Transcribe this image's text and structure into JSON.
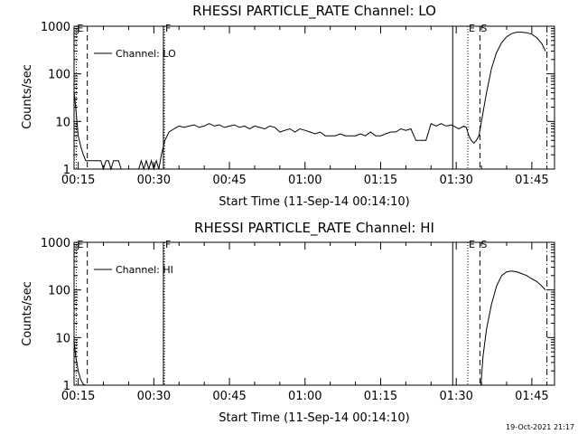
{
  "chart_data": [
    {
      "type": "line",
      "title": "RHESSI PARTICLE_RATE Channel: LO",
      "xlabel": "Start Time (11-Sep-14 00:14:10)",
      "ylabel": "Counts/sec",
      "yscale": "log",
      "ylim": [
        1,
        1000
      ],
      "xlim_min": [
        14.17,
        109.5
      ],
      "x_ticks": [
        {
          "min": 15,
          "label": "00:15"
        },
        {
          "min": 30,
          "label": "00:30"
        },
        {
          "min": 45,
          "label": "00:45"
        },
        {
          "min": 60,
          "label": "01:00"
        },
        {
          "min": 75,
          "label": "01:15"
        },
        {
          "min": 90,
          "label": "01:30"
        },
        {
          "min": 105,
          "label": "01:45"
        }
      ],
      "y_ticks": [
        {
          "v": 1,
          "label": "1"
        },
        {
          "v": 10,
          "label": "10"
        },
        {
          "v": 100,
          "label": "100"
        },
        {
          "v": 1000,
          "label": "1000"
        }
      ],
      "legend": {
        "label": "Channel: LO",
        "placement": "top-left"
      },
      "markers": [
        {
          "min": 14.6,
          "style": "dotted",
          "label": "E"
        },
        {
          "min": 16.8,
          "style": "dashed",
          "label": ""
        },
        {
          "min": 31.9,
          "style": "solid",
          "label": ""
        },
        {
          "min": 32.1,
          "style": "dotted",
          "label": "F"
        },
        {
          "min": 89.3,
          "style": "solid",
          "label": ""
        },
        {
          "min": 92.3,
          "style": "dotted",
          "label": "E"
        },
        {
          "min": 94.7,
          "style": "dashed",
          "label": "S"
        },
        {
          "min": 108.0,
          "style": "dashdot",
          "label": ""
        }
      ],
      "series": [
        {
          "x": [
            14.2,
            14.6,
            15.0,
            15.5,
            16.0,
            16.5,
            17.0,
            17.5,
            18.5,
            19.5,
            20.0,
            20.5,
            21.0,
            21.5,
            22.0,
            22.5,
            23.0,
            23.5,
            24.0,
            24.5,
            25.0,
            26.0,
            27.0,
            27.5,
            28.0,
            28.5,
            29.0,
            29.5,
            30.0,
            30.5,
            31.0,
            31.5,
            32.2,
            33.0,
            34.0,
            35.0,
            36.0,
            37.0,
            38.0,
            39.0,
            40.0,
            41.0,
            42.0,
            43.0,
            44.0,
            45.0,
            46.0,
            47.0,
            48.0,
            49.0,
            50.0,
            51.0,
            52.0,
            53.0,
            54.0,
            55.0,
            56.0,
            57.0,
            58.0,
            59.0,
            60.0,
            61.0,
            62.0,
            63.0,
            64.0,
            65.0,
            66.0,
            67.0,
            68.0,
            69.0,
            70.0,
            71.0,
            72.0,
            73.0,
            74.0,
            75.0,
            76.0,
            77.0,
            78.0,
            79.0,
            80.0,
            81.0,
            82.0,
            83.0,
            84.0,
            85.0,
            86.0,
            87.0,
            88.0,
            89.0,
            89.5,
            90.5,
            91.5,
            92.0,
            92.5,
            93.0,
            93.5,
            94.0,
            94.5,
            95.0,
            96.0,
            97.0,
            98.0,
            99.0,
            100.0,
            101.0,
            102.0,
            103.0,
            104.0,
            105.0,
            106.0,
            107.0,
            107.7
          ],
          "y": [
            40,
            15,
            5,
            3,
            2,
            1.5,
            1.5,
            1.5,
            1.5,
            1.5,
            1,
            1.5,
            1.5,
            1,
            1.5,
            1.5,
            1.5,
            1,
            1,
            1,
            1,
            1,
            1,
            1.5,
            1,
            1.5,
            1,
            1.5,
            1,
            1.5,
            1,
            2,
            4,
            6,
            7,
            8,
            7.5,
            8,
            8.5,
            7.5,
            8,
            9,
            8,
            8.5,
            7.5,
            8,
            8.5,
            7.5,
            8,
            7,
            8,
            7.5,
            7,
            8,
            7.5,
            6,
            6.5,
            7,
            6,
            7,
            6.5,
            6,
            5.5,
            6,
            5,
            5,
            5,
            5.5,
            5,
            5,
            5,
            5.5,
            5,
            6,
            5,
            5,
            5.5,
            6,
            6,
            7,
            6.5,
            7,
            4,
            4,
            4,
            9,
            8,
            9,
            8,
            8.5,
            8,
            7,
            8,
            7.5,
            5,
            4,
            3.5,
            4,
            5,
            10,
            40,
            130,
            280,
            450,
            600,
            700,
            750,
            750,
            730,
            680,
            570,
            430,
            300
          ]
        }
      ]
    },
    {
      "type": "line",
      "title": "RHESSI PARTICLE_RATE Channel: HI",
      "xlabel": "Start Time (11-Sep-14 00:14:10)",
      "ylabel": "Counts/sec",
      "yscale": "log",
      "ylim": [
        1,
        1000
      ],
      "xlim_min": [
        14.17,
        109.5
      ],
      "x_ticks": [
        {
          "min": 15,
          "label": "00:15"
        },
        {
          "min": 30,
          "label": "00:30"
        },
        {
          "min": 45,
          "label": "00:45"
        },
        {
          "min": 60,
          "label": "01:00"
        },
        {
          "min": 75,
          "label": "01:15"
        },
        {
          "min": 90,
          "label": "01:30"
        },
        {
          "min": 105,
          "label": "01:45"
        }
      ],
      "y_ticks": [
        {
          "v": 1,
          "label": "1"
        },
        {
          "v": 10,
          "label": "10"
        },
        {
          "v": 100,
          "label": "100"
        },
        {
          "v": 1000,
          "label": "1000"
        }
      ],
      "legend": {
        "label": "Channel: HI",
        "placement": "top-left"
      },
      "markers": [
        {
          "min": 14.6,
          "style": "dotted",
          "label": "E"
        },
        {
          "min": 16.8,
          "style": "dashed",
          "label": ""
        },
        {
          "min": 31.9,
          "style": "solid",
          "label": ""
        },
        {
          "min": 32.1,
          "style": "dotted",
          "label": "F"
        },
        {
          "min": 89.3,
          "style": "solid",
          "label": ""
        },
        {
          "min": 92.3,
          "style": "dotted",
          "label": "E"
        },
        {
          "min": 94.7,
          "style": "dashed",
          "label": "S"
        },
        {
          "min": 108.0,
          "style": "dashdot",
          "label": ""
        }
      ],
      "series": [
        {
          "x": [
            14.2,
            14.5,
            15.0,
            15.5,
            16.0,
            16.4,
            94.9,
            95.3,
            96.0,
            97.0,
            98.0,
            99.0,
            100.0,
            101.0,
            102.0,
            103.0,
            104.0,
            105.0,
            106.0,
            107.0,
            107.7
          ],
          "y": [
            8,
            4,
            2,
            1.3,
            1.05,
            1,
            1,
            4,
            15,
            50,
            120,
            200,
            240,
            250,
            240,
            220,
            200,
            170,
            150,
            120,
            100
          ]
        }
      ]
    }
  ],
  "footer": {
    "timestamp": "19-Oct-2021 21:17"
  }
}
